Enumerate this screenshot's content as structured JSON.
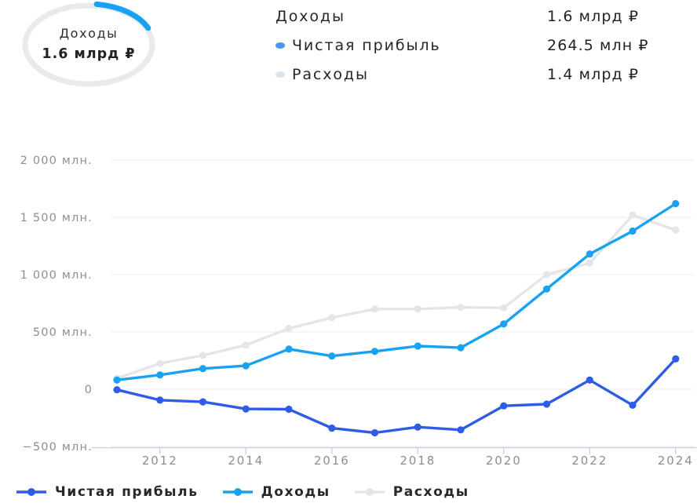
{
  "donut": {
    "label": "Доходы",
    "value": "1.6 млрд ₽",
    "ring_color": "#e9eaec",
    "arc": {
      "color": "#18a3f2",
      "start_deg": 7,
      "end_deg": 66
    }
  },
  "summary": {
    "rows": [
      {
        "label": "Доходы",
        "value": "1.6 млрд ₽"
      },
      {
        "label": "Чистая прибыль",
        "value": "264.5 млн ₽",
        "dot_color": "#4a96ee"
      },
      {
        "label": "Расходы",
        "value": "1.4 млрд ₽",
        "dot_color": "#dbe3ee"
      }
    ]
  },
  "chart_data": {
    "type": "line",
    "unit": "млн ₽",
    "x": [
      2011,
      2012,
      2013,
      2014,
      2015,
      2016,
      2017,
      2018,
      2019,
      2020,
      2021,
      2022,
      2023,
      2024
    ],
    "series": [
      {
        "name": "Чистая прибыль",
        "slug": "net-profit",
        "color": "#2e5ce5",
        "values": [
          -5,
          -95,
          -110,
          -172,
          -175,
          -340,
          -380,
          -330,
          -355,
          -145,
          -130,
          80,
          -140,
          264.5
        ]
      },
      {
        "name": "Доходы",
        "slug": "income",
        "color": "#18a3f2",
        "values": [
          80,
          125,
          180,
          205,
          350,
          290,
          330,
          377,
          362,
          570,
          875,
          1180,
          1380,
          1620
        ]
      },
      {
        "name": "Расходы",
        "slug": "expenses",
        "color": "#e3e5e8",
        "values": [
          95,
          225,
          295,
          385,
          530,
          625,
          700,
          700,
          715,
          710,
          1000,
          1100,
          1520,
          1390
        ]
      }
    ],
    "y_ticks": [
      {
        "v": 2000,
        "label": "2 000 млн."
      },
      {
        "v": 1500,
        "label": "1 500 млн."
      },
      {
        "v": 1000,
        "label": "1 000 млн."
      },
      {
        "v": 500,
        "label": "500 млн."
      },
      {
        "v": 0,
        "label": "0"
      },
      {
        "v": -500,
        "label": "−500 млн."
      }
    ],
    "x_ticks": [
      2012,
      2014,
      2016,
      2018,
      2020,
      2022,
      2024
    ],
    "ylim": [
      -500,
      2000
    ],
    "grid": true,
    "legend_position": "bottom",
    "colors": {
      "grid": "#ececec",
      "axis": "#c4cdec",
      "axis_text": "#8c8e93"
    }
  }
}
